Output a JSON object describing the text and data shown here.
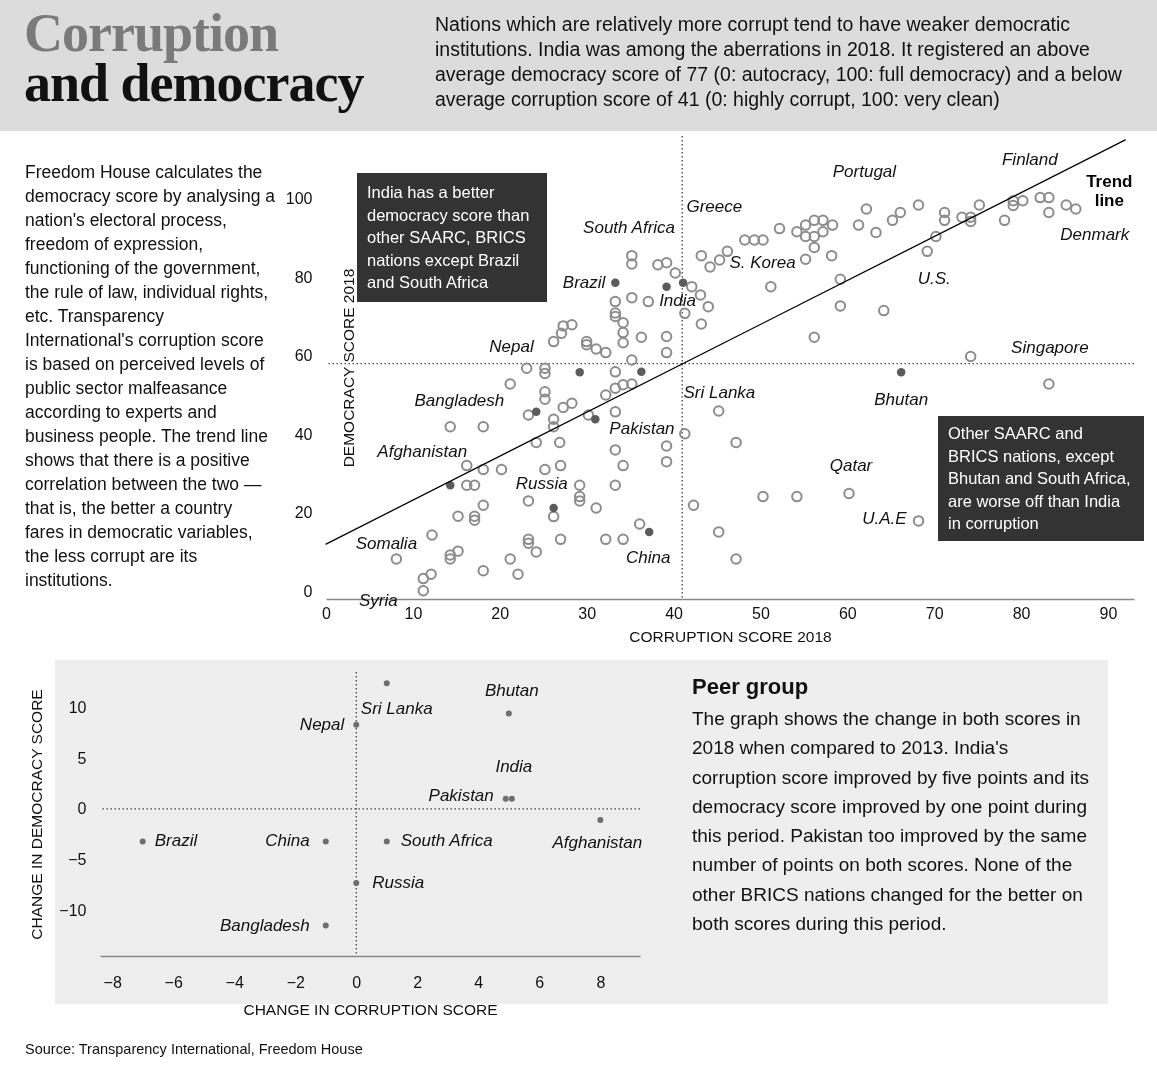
{
  "chart_data": [
    {
      "type": "scatter",
      "title": "Corruption and democracy",
      "subtitle": "Nations which are relatively more corrupt tend to have weaker democratic institutions. India was among the aberrations in 2018. It registered an above average democracy score of 77 (0: autocracy, 100: full democracy) and a below average corruption score of 41 (0: highly corrupt, 100: very clean)",
      "xlabel": "CORRUPTION SCORE 2018",
      "ylabel": "DEMOCRACY SCORE 2018",
      "xlim": [
        0,
        93
      ],
      "ylim": [
        -2,
        116
      ],
      "xticks": [
        0,
        10,
        20,
        30,
        40,
        50,
        60,
        70,
        80,
        90
      ],
      "yticks": [
        0,
        20,
        40,
        60,
        80,
        100
      ],
      "series": [
        {
          "color": "#8c8c8c",
          "marker": "circle",
          "x": [
            35.2,
            35.2,
            38.2,
            39.2,
            40.2,
            42.1,
            33.3,
            35.2,
            37.1,
            33.3,
            33.3,
            34.2,
            34.2,
            34.2,
            36.3,
            39.2,
            39.2,
            41.3,
            43.2,
            44.0,
            43.1,
            27.3,
            28.3,
            27.1,
            26.2,
            30.0,
            30.0,
            31.1,
            32.2,
            35.2,
            23.1,
            25.2,
            25.2,
            33.3,
            21.2,
            25.2,
            25.2,
            27.3,
            28.3,
            32.2,
            33.3,
            34.2,
            35.2,
            23.3,
            26.2,
            26.2,
            30.2,
            33.3,
            14.3,
            18.1,
            24.2,
            26.9,
            33.3,
            39.2,
            39.2,
            41.3,
            16.2,
            18.1,
            20.2,
            25.2,
            27.0,
            34.2,
            16.2,
            17.1,
            29.2,
            29.2,
            29.2,
            33.3,
            23.3,
            26.2,
            31.1,
            18.1,
            15.2,
            17.1,
            17.1,
            42.3,
            36.1,
            12.2,
            23.3,
            23.3,
            24.2,
            27.0,
            32.2,
            34.2,
            8.1,
            14.3,
            14.3,
            15.2,
            21.2,
            18.1,
            22.1,
            11.2,
            12.1,
            11.2,
            43.2,
            44.2,
            45.3,
            46.2,
            48.2,
            49.3,
            50.3,
            52.2,
            54.2,
            55.2,
            55.2,
            56.2,
            56.2,
            57.2,
            57.2,
            58.3,
            56.2,
            55.2,
            58.2,
            61.3,
            62.2,
            63.3,
            65.2,
            66.1,
            68.2,
            51.2,
            59.2,
            59.2,
            64.2,
            56.2,
            69.2,
            70.2,
            71.2,
            71.2,
            73.2,
            74.2,
            74.2,
            75.2,
            78.1,
            79.1,
            79.1,
            80.2,
            82.2,
            83.2,
            83.2,
            85.2,
            86.3,
            74.2,
            83.2,
            45.2,
            47.2,
            50.3,
            54.2,
            60.2,
            68.2,
            45.2,
            47.2
          ],
          "values": [
            85.5,
            83.4,
            83.2,
            83.7,
            81.1,
            77.6,
            73.8,
            74.8,
            73.8,
            70.9,
            70.0,
            68.4,
            65.9,
            63.3,
            64.7,
            64.9,
            60.8,
            70.8,
            68.1,
            72.5,
            75.5,
            67.6,
            67.9,
            65.7,
            63.6,
            63.6,
            62.8,
            61.7,
            60.8,
            58.9,
            56.8,
            56.8,
            55.5,
            55.9,
            52.8,
            50.8,
            48.9,
            46.8,
            47.9,
            50.0,
            51.7,
            52.6,
            52.8,
            44.9,
            43.8,
            41.9,
            44.9,
            45.7,
            41.9,
            41.9,
            37.9,
            37.9,
            36.0,
            37.0,
            33.0,
            40.1,
            32.0,
            31.0,
            31.0,
            31.0,
            32.0,
            32.0,
            27.0,
            27.0,
            27.0,
            24.1,
            23.0,
            27.0,
            23.0,
            19.0,
            21.2,
            21.9,
            19.1,
            19.1,
            18.1,
            21.9,
            17.1,
            14.3,
            13.2,
            12.2,
            10.0,
            13.2,
            13.2,
            13.2,
            8.2,
            9.2,
            8.2,
            10.2,
            8.2,
            5.2,
            4.3,
            3.2,
            4.3,
            0.1,
            85.5,
            82.6,
            84.4,
            86.6,
            89.5,
            89.5,
            89.5,
            92.4,
            91.6,
            93.3,
            90.4,
            94.5,
            90.4,
            94.5,
            91.6,
            93.3,
            87.6,
            84.6,
            85.5,
            93.3,
            97.4,
            91.4,
            94.5,
            96.5,
            98.4,
            77.6,
            79.5,
            72.7,
            71.5,
            64.7,
            86.6,
            90.4,
            96.5,
            94.5,
            95.3,
            95.3,
            94.2,
            98.4,
            94.5,
            99.5,
            98.3,
            99.5,
            100.3,
            100.3,
            96.5,
            98.4,
            97.4,
            59.8,
            52.8,
            45.9,
            37.9,
            24.1,
            24.1,
            24.9,
            17.9,
            15.1,
            8.2
          ]
        },
        {
          "color": "#5c5c5c",
          "marker": "circle",
          "x": [
            33.3,
            39.2,
            41.1,
            29.2,
            36.3,
            24.2,
            31.0,
            14.3,
            26.2,
            37.2,
            66.2
          ],
          "values": [
            78.6,
            77.6,
            78.6,
            55.8,
            55.9,
            45.7,
            43.8,
            27.0,
            21.2,
            15.1,
            55.8
          ]
        },
        {
          "name": "Trend line",
          "type": "line",
          "color": "#000000",
          "x": [
            0,
            92
          ],
          "values": [
            12,
            115
          ]
        }
      ],
      "ref_lines": [
        {
          "axis": "x",
          "value": 41,
          "color": "#444444",
          "line_style": "dotted"
        },
        {
          "axis": "y",
          "value": 58,
          "color": "#444444",
          "line_style": "dotted"
        }
      ],
      "annotations": [
        "Freedom House calculates the democracy score by analysing a nation's electoral process, freedom of expression, functioning of the government, the rule of law, individual rights, etc. Transparency International's corruption score is based on perceived levels of public sector malfeasance according to experts and business people. The trend line shows that there is a positive correlation between the two — that is, the better a country fares in democratic variables, the less corrupt are its institutions.",
        "India has a better democracy score than other SAARC, BRICS nations except Brazil and South Africa",
        "Other SAARC and BRICS nations, except Bhutan and South Africa, are worse off than India in corruption",
        "Source: Transparency International, Freedom House",
        {
          "text": "Greece",
          "x": 43.2,
          "y": 85.5
        },
        {
          "text": "S. Korea",
          "x": 55.2,
          "y": 84.6
        },
        {
          "text": "Portugal",
          "x": 62.2,
          "y": 97.4
        },
        {
          "text": "Finland",
          "x": 83.2,
          "y": 100.3
        },
        {
          "text": "Denmark",
          "x": 86.3,
          "y": 97.4
        },
        {
          "text": "U.S.",
          "x": 69.2,
          "y": 86.6
        },
        {
          "text": "Singapore",
          "x": 83.2,
          "y": 52.8
        },
        {
          "text": "Qatar",
          "x": 60.2,
          "y": 24.9
        },
        {
          "text": "U.A.E",
          "x": 68.2,
          "y": 17.9
        },
        {
          "text": "Somalia",
          "x": 8.1,
          "y": 8.2
        },
        {
          "text": "Syria",
          "x": 11.2,
          "y": 0.1
        },
        {
          "text": "Brazil",
          "x": 33.3,
          "y": 78.6
        },
        {
          "text": "South Africa",
          "x": 41.1,
          "y": 78.6
        },
        {
          "text": "India",
          "x": 39.2,
          "y": 77.6
        },
        {
          "text": "Nepal",
          "x": 29.2,
          "y": 55.8
        },
        {
          "text": "Sri Lanka",
          "x": 36.3,
          "y": 55.9
        },
        {
          "text": "Bangladesh",
          "x": 24.2,
          "y": 45.7
        },
        {
          "text": "Pakistan",
          "x": 31.0,
          "y": 43.8
        },
        {
          "text": "Afghanistan",
          "x": 14.3,
          "y": 27.0
        },
        {
          "text": "Russia",
          "x": 26.2,
          "y": 21.2
        },
        {
          "text": "China",
          "x": 37.2,
          "y": 15.1
        },
        {
          "text": "Bhutan",
          "x": 66.2,
          "y": 55.8
        }
      ]
    },
    {
      "type": "scatter",
      "annotations": [
        "Peer group",
        "The graph shows the change in both scores in 2018 when compared to 2013. India's corruption score improved by five points and its democracy score improved by one point during this period. Pakistan too improved by the same number of points on both scores. None of the other BRICS nations changed for the better on both scores during this period.",
        {
          "text": "Brazil",
          "x": -7,
          "y": -3.2
        },
        {
          "text": "China",
          "x": -1,
          "y": -3.2
        },
        {
          "text": "South Africa",
          "x": 1,
          "y": -3.2
        },
        {
          "text": "Afghanistan",
          "x": 8,
          "y": -1.1
        },
        {
          "text": "Russia",
          "x": 0,
          "y": -7.3
        },
        {
          "text": "Bangladesh",
          "x": -1,
          "y": -11.5
        },
        {
          "text": "Nepal",
          "x": 0,
          "y": 8.3
        },
        {
          "text": "Sri Lanka",
          "x": 1,
          "y": 12.4
        },
        {
          "text": "Bhutan",
          "x": 5,
          "y": 9.4
        },
        {
          "text": "India",
          "x": 5.1,
          "y": 1
        },
        {
          "text": "Pakistan",
          "x": 4.9,
          "y": 1
        }
      ],
      "xlabel": "CHANGE IN CORRUPTION SCORE",
      "ylabel": "CHANGE IN DEMOCRACY SCORE",
      "xlim": [
        -8.4,
        9.3
      ],
      "ylim": [
        -14.5,
        13.5
      ],
      "xticks": [
        -8,
        -6,
        -4,
        -2,
        0,
        2,
        4,
        6,
        8
      ],
      "yticks": [
        -10,
        -5,
        0,
        5,
        10
      ],
      "marker": "circle",
      "color": "#6e6e6e",
      "x": [
        -7,
        -1,
        1,
        8,
        0,
        -1,
        0,
        1,
        5,
        5.1,
        4.9
      ],
      "values": [
        -3.2,
        -3.2,
        -3.2,
        -1.1,
        -7.3,
        -11.5,
        8.3,
        12.4,
        9.4,
        1,
        1
      ],
      "ref_lines": [
        {
          "axis": "x",
          "value": 0,
          "color": "#444444",
          "line_style": "dotted"
        },
        {
          "axis": "y",
          "value": 0,
          "color": "#444444",
          "line_style": "dotted"
        }
      ]
    }
  ]
}
